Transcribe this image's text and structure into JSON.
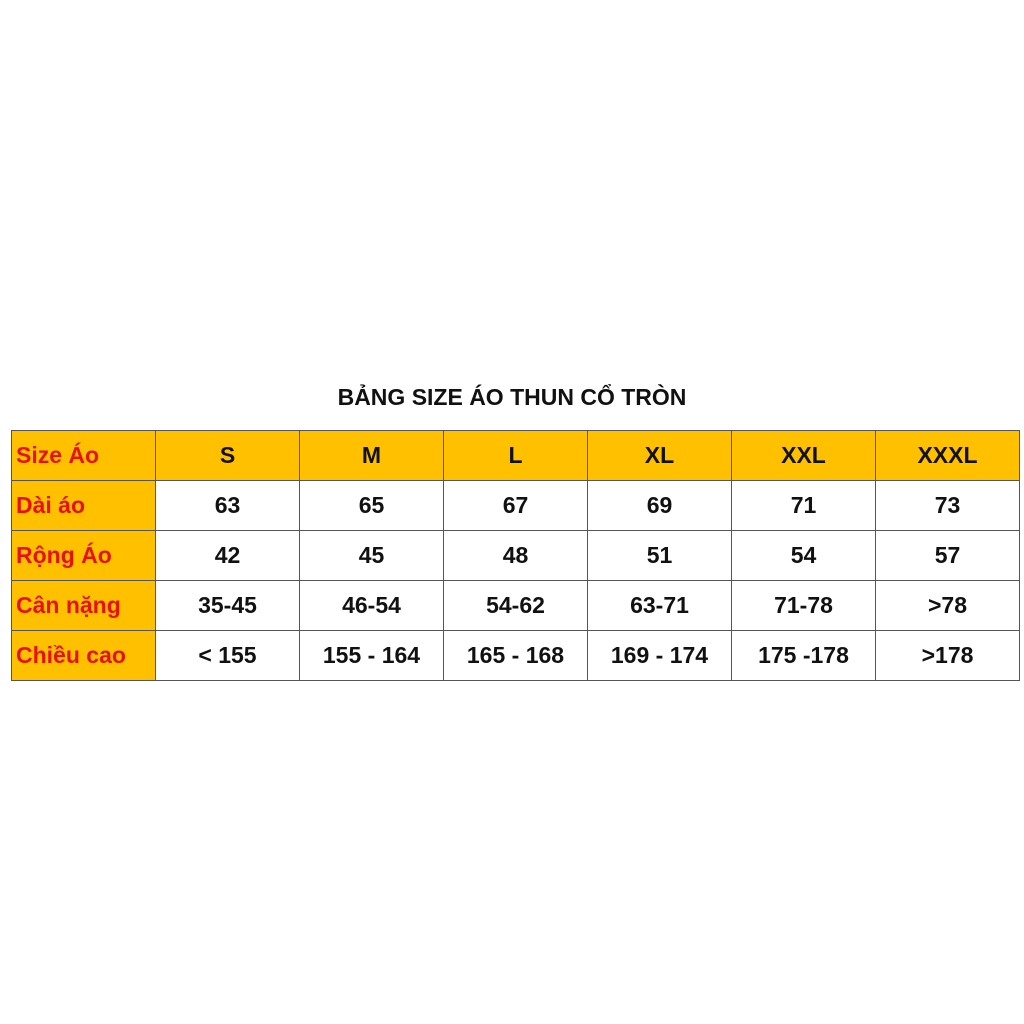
{
  "title": "BẢNG SIZE ÁO THUN CỔ TRÒN",
  "colors": {
    "header_bg": "#ffc000",
    "label_text": "#e8110f"
  },
  "table": {
    "header": [
      "Size Áo",
      "S",
      "M",
      "L",
      "XL",
      "XXL",
      "XXXL"
    ],
    "rows": [
      [
        "Dài áo",
        "63",
        "65",
        "67",
        "69",
        "71",
        "73"
      ],
      [
        "Rộng Áo",
        "42",
        "45",
        "48",
        "51",
        "54",
        "57"
      ],
      [
        "Cân nặng",
        "35-45",
        "46-54",
        "54-62",
        "63-71",
        "71-78",
        ">78"
      ],
      [
        "Chiều cao",
        "< 155",
        "155 - 164",
        "165 - 168",
        "169 - 174",
        "175 -178",
        ">178"
      ]
    ]
  }
}
